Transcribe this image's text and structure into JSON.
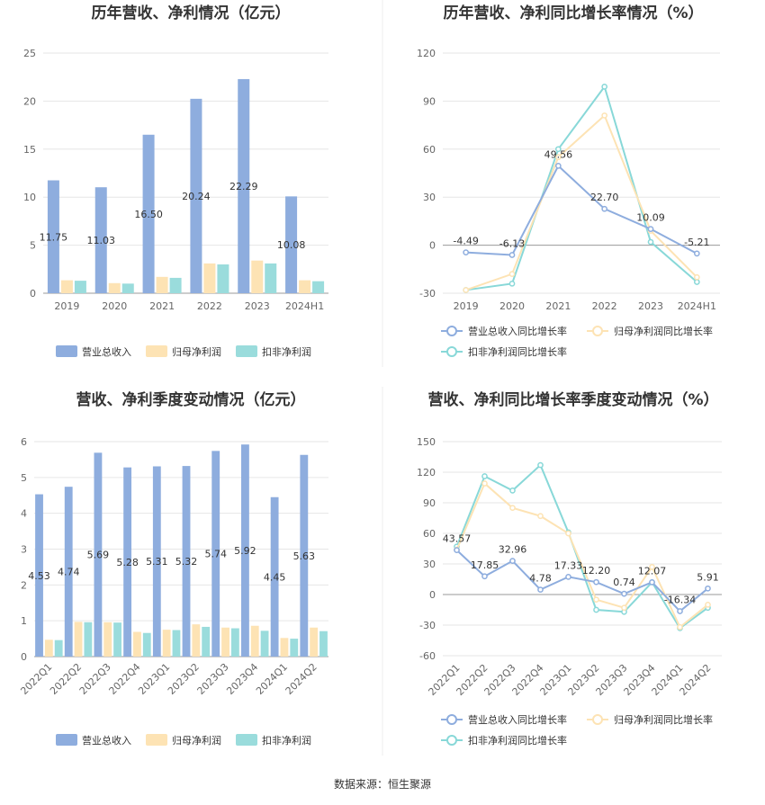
{
  "source_text": "数据来源：恒生聚源",
  "colors": {
    "revenue": "#8eadde",
    "net_profit": "#fde3b4",
    "deducted": "#9adcdc",
    "line_revenue": "#8eadde",
    "line_net": "#fde3b4",
    "line_deducted": "#88d8d8"
  },
  "chart_data": [
    {
      "type": "bar",
      "title": "历年营收、净利情况（亿元）",
      "categories": [
        "2019",
        "2020",
        "2021",
        "2022",
        "2023",
        "2024H1"
      ],
      "yticks": [
        "0",
        "5",
        "10",
        "15",
        "20",
        "25"
      ],
      "ylim": [
        0,
        25
      ],
      "series": [
        {
          "name": "营业总收入",
          "values": [
            11.75,
            11.03,
            16.5,
            20.24,
            22.29,
            10.08
          ],
          "labels": [
            "11.75",
            "11.03",
            "16.50",
            "20.24",
            "22.29",
            "10.08"
          ]
        },
        {
          "name": "归母净利润",
          "values": [
            1.35,
            1.05,
            1.7,
            3.1,
            3.4,
            1.35
          ]
        },
        {
          "name": "扣非净利润",
          "values": [
            1.3,
            1.0,
            1.6,
            3.0,
            3.1,
            1.25
          ]
        }
      ],
      "legend": "bottom",
      "grid": true
    },
    {
      "type": "line",
      "title": "历年营收、净利同比增长率情况（%）",
      "categories": [
        "2019",
        "2020",
        "2021",
        "2022",
        "2023",
        "2024H1"
      ],
      "yticks": [
        "-30",
        "0",
        "30",
        "60",
        "90",
        "120"
      ],
      "ylim": [
        -30,
        120
      ],
      "series": [
        {
          "name": "营业总收入同比增长率",
          "values": [
            -4.49,
            -6.13,
            49.56,
            22.7,
            10.09,
            -5.21
          ],
          "labels": [
            "-4.49",
            "-6.13",
            "49.56",
            "22.70",
            "10.09",
            "-5.21"
          ]
        },
        {
          "name": "归母净利润同比增长率",
          "values": [
            -28,
            -18,
            55,
            81,
            9,
            -20
          ]
        },
        {
          "name": "扣非净利润同比增长率",
          "values": [
            -28,
            -24,
            60,
            99,
            2,
            -23
          ]
        }
      ],
      "legend": "bottom",
      "grid": true
    },
    {
      "type": "bar",
      "title": "营收、净利季度变动情况（亿元）",
      "categories": [
        "2022Q1",
        "2022Q2",
        "2022Q3",
        "2022Q4",
        "2023Q1",
        "2023Q2",
        "2023Q3",
        "2023Q4",
        "2024Q1",
        "2024Q2"
      ],
      "yticks": [
        "0",
        "1",
        "2",
        "3",
        "4",
        "5",
        "6"
      ],
      "ylim": [
        0,
        6
      ],
      "series": [
        {
          "name": "营业总收入",
          "values": [
            4.53,
            4.74,
            5.69,
            5.28,
            5.31,
            5.32,
            5.74,
            5.92,
            4.45,
            5.63
          ],
          "labels": [
            "4.53",
            "4.74",
            "5.69",
            "5.28",
            "5.31",
            "5.32",
            "5.74",
            "5.92",
            "4.45",
            "5.63"
          ]
        },
        {
          "name": "归母净利润",
          "values": [
            0.47,
            0.97,
            0.96,
            0.69,
            0.75,
            0.9,
            0.81,
            0.86,
            0.52,
            0.81
          ]
        },
        {
          "name": "扣非净利润",
          "values": [
            0.46,
            0.96,
            0.95,
            0.66,
            0.74,
            0.83,
            0.79,
            0.72,
            0.5,
            0.71
          ]
        }
      ],
      "legend": "bottom",
      "grid": true
    },
    {
      "type": "line",
      "title": "营收、净利同比增长率季度变动情况（%）",
      "categories": [
        "2022Q1",
        "2022Q2",
        "2022Q3",
        "2022Q4",
        "2023Q1",
        "2023Q2",
        "2023Q3",
        "2023Q4",
        "2024Q1",
        "2024Q2"
      ],
      "yticks": [
        "-60",
        "-30",
        "0",
        "30",
        "60",
        "90",
        "120",
        "150"
      ],
      "ylim": [
        -60,
        150
      ],
      "series": [
        {
          "name": "营业总收入同比增长率",
          "values": [
            43.57,
            17.85,
            32.96,
            4.78,
            17.33,
            12.2,
            0.74,
            12.07,
            -16.34,
            5.91
          ],
          "labels": [
            "43.57",
            "17.85",
            "32.96",
            "4.78",
            "17.33",
            "12.20",
            "0.74",
            "12.07",
            "-16.34",
            "5.91"
          ]
        },
        {
          "name": "归母净利润同比增长率",
          "values": [
            44,
            109,
            85,
            77,
            60,
            -5,
            -13,
            27,
            -32,
            -10
          ]
        },
        {
          "name": "扣非净利润同比增长率",
          "values": [
            47,
            116,
            102,
            127,
            61,
            -15,
            -17,
            12,
            -33,
            -13
          ]
        }
      ],
      "legend": "bottom",
      "grid": true
    }
  ]
}
